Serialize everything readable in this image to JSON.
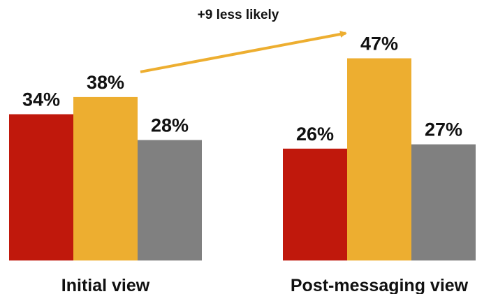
{
  "chart_data": {
    "type": "bar",
    "categories": [
      "Initial view",
      "Post-messaging view"
    ],
    "series": [
      {
        "values": [
          34,
          26
        ],
        "color": "#C0180C"
      },
      {
        "values": [
          38,
          47
        ],
        "color": "#EDAE30"
      },
      {
        "values": [
          28,
          27
        ],
        "color": "#808080"
      }
    ],
    "value_labels": [
      [
        "34%",
        "26%"
      ],
      [
        "38%",
        "47%"
      ],
      [
        "28%",
        "27%"
      ]
    ],
    "title": "",
    "xlabel": "",
    "ylabel": "",
    "ylim": [
      0,
      50
    ],
    "grid": false,
    "legend": "none",
    "annotation": {
      "text": "+9 less likely",
      "from": {
        "category": "Initial view",
        "series_index": 1
      },
      "to": {
        "category": "Post-messaging view",
        "series_index": 1
      },
      "color": "#EDAE30"
    }
  }
}
